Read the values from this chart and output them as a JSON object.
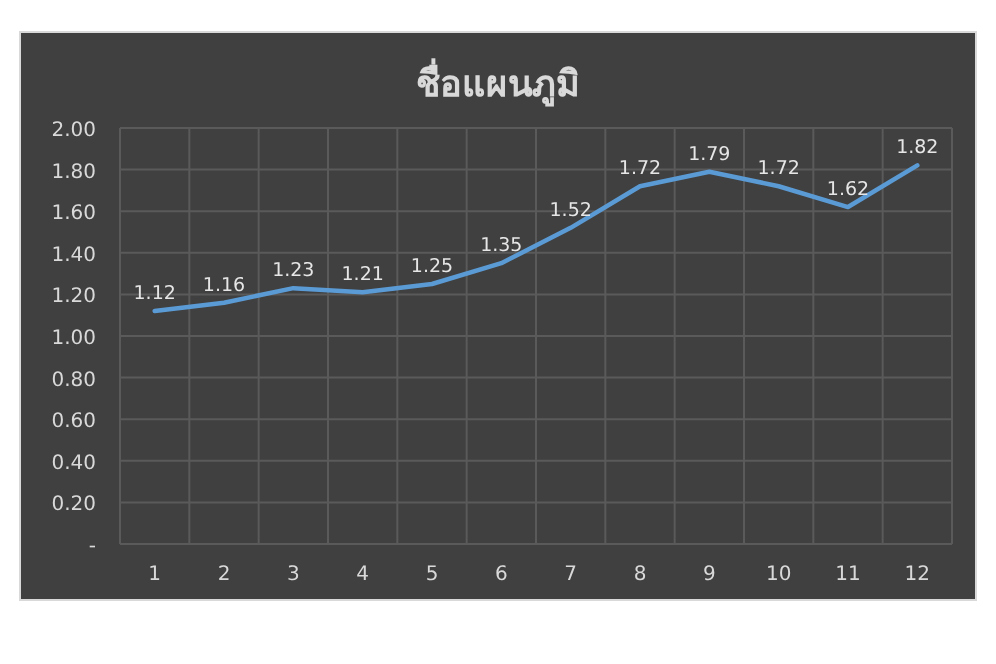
{
  "chart_data": {
    "type": "line",
    "title": "ชื่อแผนภูมิ",
    "categories": [
      "1",
      "2",
      "3",
      "4",
      "5",
      "6",
      "7",
      "8",
      "9",
      "10",
      "11",
      "12"
    ],
    "series": [
      {
        "color": "#5b9bd5",
        "values": [
          1.12,
          1.16,
          1.23,
          1.21,
          1.25,
          1.35,
          1.52,
          1.72,
          1.79,
          1.72,
          1.62,
          1.82
        ]
      }
    ],
    "ylim": [
      0,
      2
    ],
    "yticks": [
      {
        "value": 0,
        "label": "-"
      },
      {
        "value": 0.2,
        "label": "0.20"
      },
      {
        "value": 0.4,
        "label": "0.40"
      },
      {
        "value": 0.6,
        "label": "0.60"
      },
      {
        "value": 0.8,
        "label": "0.80"
      },
      {
        "value": 1,
        "label": "1.00"
      },
      {
        "value": 1.2,
        "label": "1.20"
      },
      {
        "value": 1.4,
        "label": "1.40"
      },
      {
        "value": 1.6,
        "label": "1.60"
      },
      {
        "value": 1.8,
        "label": "1.80"
      },
      {
        "value": 2,
        "label": "2.00"
      }
    ],
    "grid": true,
    "data_labels": true,
    "marker": "none",
    "line_style": "solid"
  }
}
